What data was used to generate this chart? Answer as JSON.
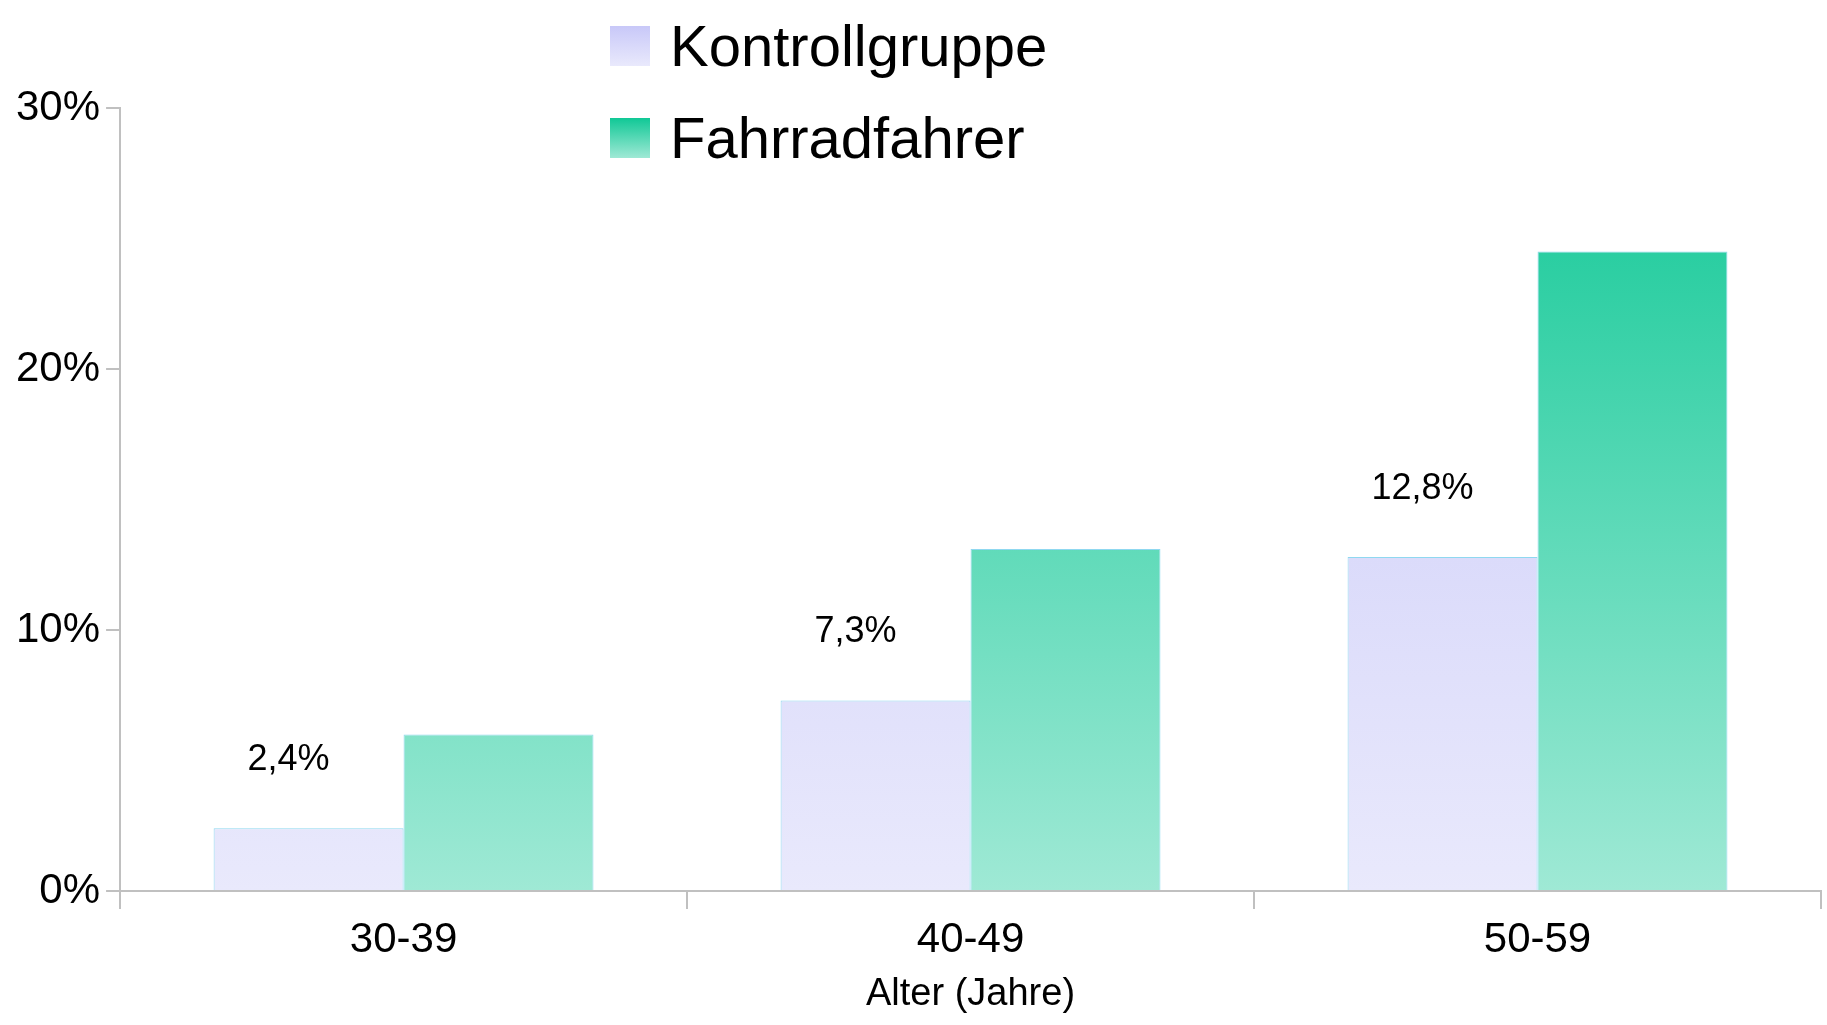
{
  "chart_data": {
    "type": "bar",
    "xlabel": "Alter (Jahre)",
    "categories": [
      "30-39",
      "40-49",
      "50-59"
    ],
    "series": [
      {
        "name": "Kontrollgruppe",
        "color": "#c8c8f8",
        "values": [
          2.4,
          7.3,
          12.8
        ],
        "value_labels": [
          "2,4%",
          "7,3%",
          "12,8%"
        ]
      },
      {
        "name": "Fahrradfahrer",
        "color": "#10c896",
        "values": [
          6.0,
          13.1,
          24.5
        ]
      }
    ],
    "ylim": [
      0,
      30
    ],
    "yticks": [
      {
        "value": 0,
        "label": "0%"
      },
      {
        "value": 10,
        "label": "10%"
      },
      {
        "value": 20,
        "label": "20%"
      },
      {
        "value": 30,
        "label": "30%"
      }
    ],
    "grid": false,
    "legend": "top"
  }
}
